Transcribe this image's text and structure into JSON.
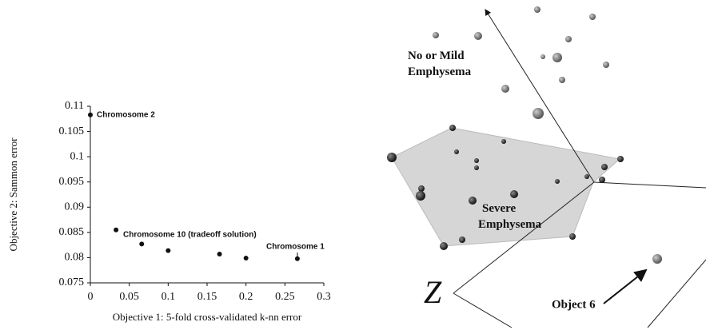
{
  "chart_data": {
    "type": "scatter",
    "x_label": "Objective 1: 5-fold cross-validated k-nn error",
    "y_label": "Objective 2: Sammon error",
    "x": [
      0,
      0.033,
      0.066,
      0.1,
      0.166,
      0.2,
      0.266
    ],
    "values": [
      0.1083,
      0.0855,
      0.0827,
      0.0814,
      0.0807,
      0.0799,
      0.0798
    ],
    "color": "#111111",
    "xlim": [
      0,
      0.3
    ],
    "xticks": [
      0,
      0.05,
      0.1,
      0.15,
      0.2,
      0.25,
      0.3
    ],
    "ylim": [
      0.075,
      0.11
    ],
    "yticks": [
      0.075,
      0.08,
      0.085,
      0.09,
      0.095,
      0.1,
      0.105,
      0.11
    ],
    "annotations": [
      "Chromosome 2",
      "Chromosome 10 (tradeoff solution)",
      "Chromosome 1"
    ]
  },
  "illustration": {
    "region_1": "No or Mild Emphysema",
    "region_2": "Severe Emphysema",
    "axis": "Z",
    "object": "Object 6"
  }
}
